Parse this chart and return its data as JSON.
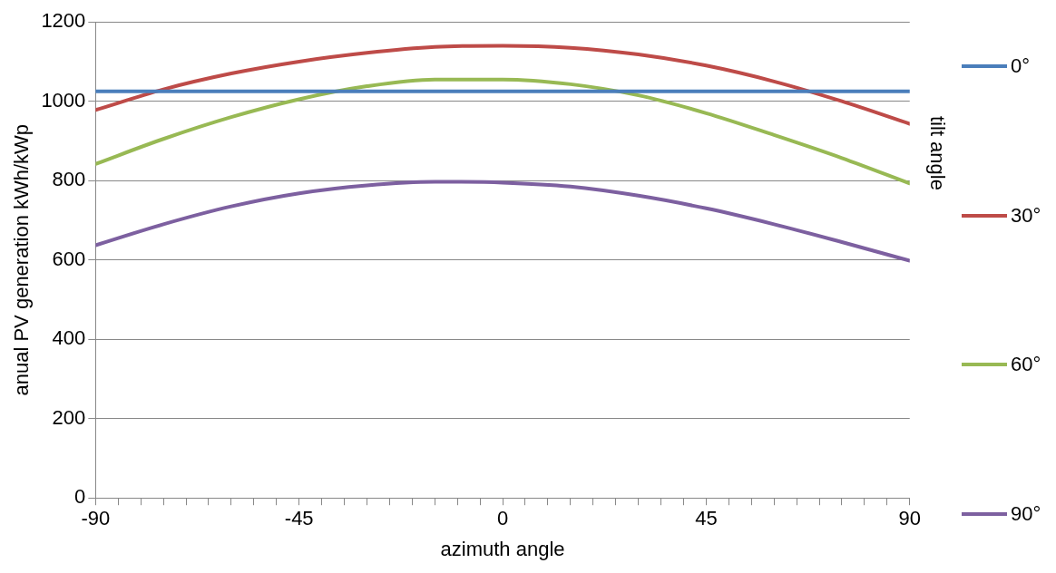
{
  "chart_data": {
    "type": "line",
    "xlabel": "azimuth angle",
    "ylabel": "anual PV generation kWh/kWp",
    "legend_title": "tilt angle",
    "x": [
      -90,
      -75,
      -60,
      -45,
      -30,
      -15,
      0,
      15,
      30,
      45,
      60,
      75,
      90
    ],
    "series": [
      {
        "name": "0°",
        "color": "#4a7ebb",
        "values": [
          1025,
          1025,
          1025,
          1025,
          1025,
          1025,
          1025,
          1025,
          1025,
          1025,
          1025,
          1025,
          1025
        ]
      },
      {
        "name": "30°",
        "color": "#be4b48",
        "values": [
          978,
          1030,
          1070,
          1100,
          1122,
          1137,
          1140,
          1135,
          1118,
          1090,
          1050,
          1000,
          943
        ]
      },
      {
        "name": "60°",
        "color": "#98b954",
        "values": [
          842,
          905,
          960,
          1005,
          1038,
          1055,
          1055,
          1043,
          1015,
          970,
          915,
          857,
          793
        ]
      },
      {
        "name": "90°",
        "color": "#7d60a0",
        "values": [
          637,
          690,
          735,
          768,
          788,
          797,
          795,
          785,
          762,
          730,
          690,
          645,
          598
        ]
      }
    ],
    "xlim": [
      -90,
      90
    ],
    "xticks": [
      -90,
      {
        "value": -85,
        "label": null
      },
      {
        "value": -80,
        "label": null
      },
      {
        "value": -75,
        "label": null
      },
      {
        "value": -70,
        "label": null
      },
      {
        "value": -65,
        "label": null
      },
      {
        "value": -60,
        "label": null
      },
      {
        "value": -55,
        "label": null
      },
      {
        "value": -50,
        "label": null
      },
      -45,
      {
        "value": -40,
        "label": null
      },
      {
        "value": -35,
        "label": null
      },
      {
        "value": -30,
        "label": null
      },
      {
        "value": -25,
        "label": null
      },
      {
        "value": -20,
        "label": null
      },
      {
        "value": -15,
        "label": null
      },
      {
        "value": -10,
        "label": null
      },
      {
        "value": -5,
        "label": null
      },
      0,
      {
        "value": 5,
        "label": null
      },
      {
        "value": 10,
        "label": null
      },
      {
        "value": 15,
        "label": null
      },
      {
        "value": 20,
        "label": null
      },
      {
        "value": 25,
        "label": null
      },
      {
        "value": 30,
        "label": null
      },
      {
        "value": 35,
        "label": null
      },
      {
        "value": 40,
        "label": null
      },
      45,
      {
        "value": 50,
        "label": null
      },
      {
        "value": 55,
        "label": null
      },
      {
        "value": 60,
        "label": null
      },
      {
        "value": 65,
        "label": null
      },
      {
        "value": 70,
        "label": null
      },
      {
        "value": 75,
        "label": null
      },
      {
        "value": 80,
        "label": null
      },
      {
        "value": 85,
        "label": null
      },
      90
    ],
    "ylim": [
      0,
      1200
    ],
    "yticks": [
      0,
      200,
      400,
      600,
      800,
      1000,
      1200
    ],
    "grid": "y",
    "legend": "right",
    "marker": "none",
    "line_style": "solid"
  }
}
